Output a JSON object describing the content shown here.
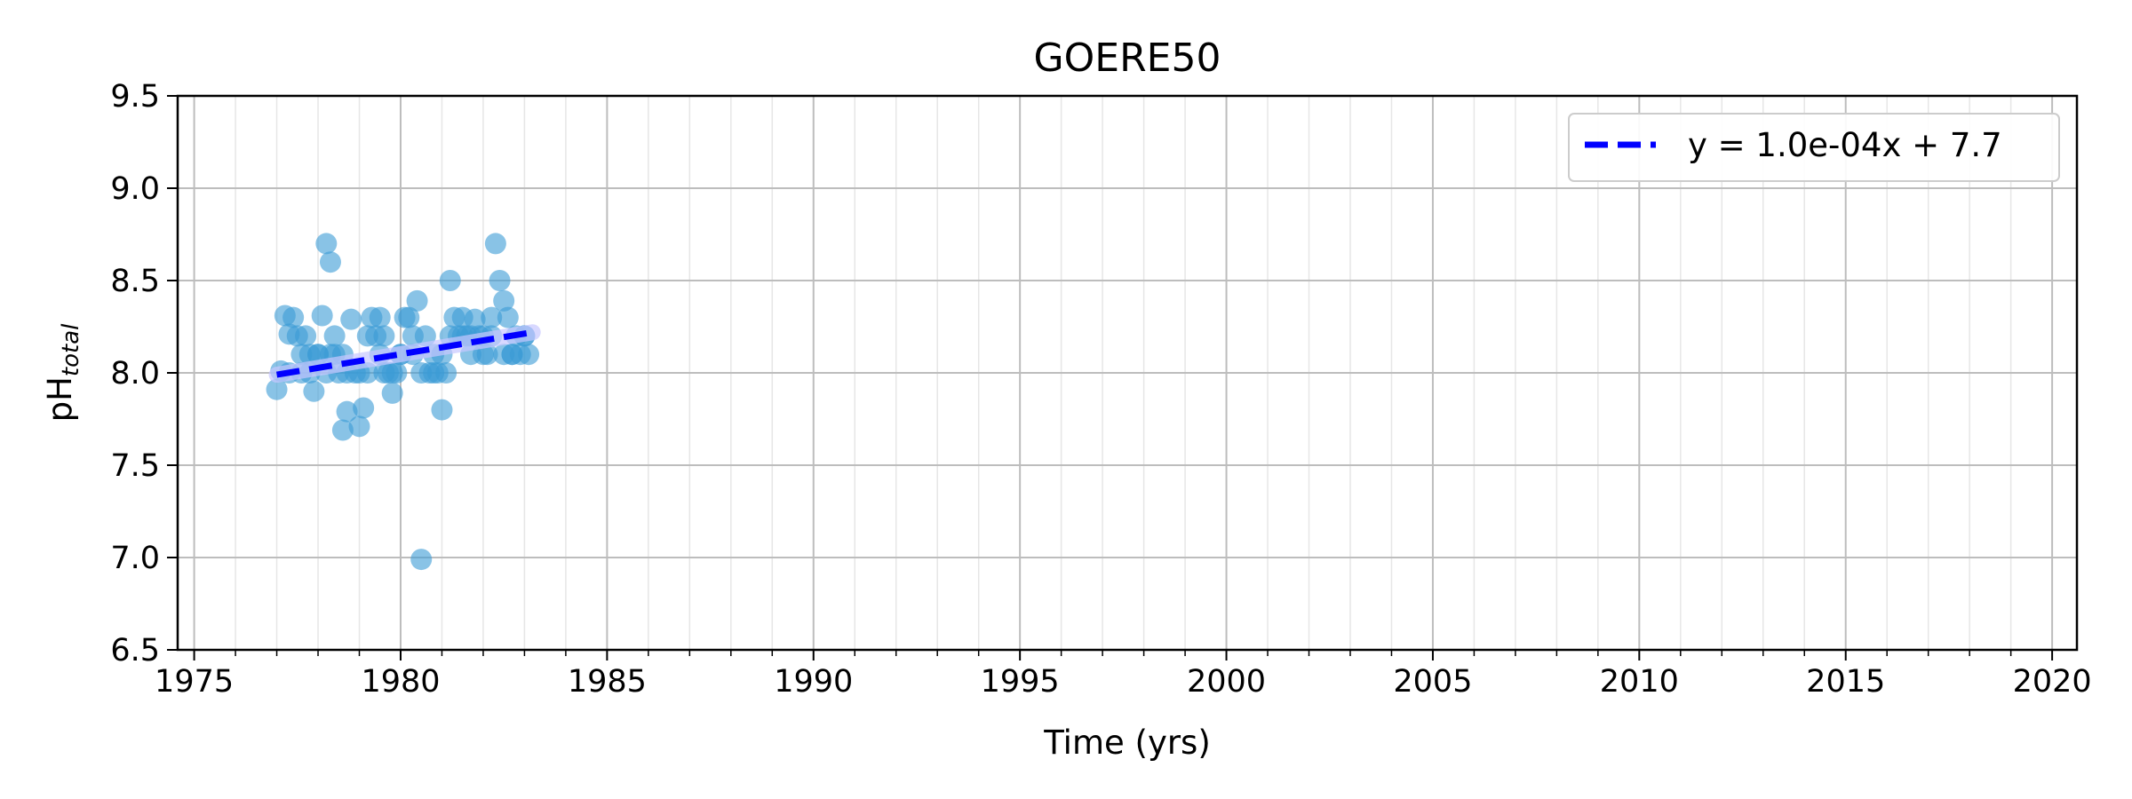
{
  "chart_data": {
    "type": "scatter",
    "title": "GOERE50",
    "xlabel": "Time (yrs)",
    "ylabel": "pH",
    "ylabel_sub": "total",
    "xlim": [
      1974.6,
      2020.6
    ],
    "ylim": [
      6.5,
      9.5
    ],
    "xticks": [
      1975,
      1980,
      1985,
      1990,
      1995,
      2000,
      2005,
      2010,
      2015,
      2020
    ],
    "yticks": [
      6.5,
      7.0,
      7.5,
      8.0,
      8.5,
      9.0,
      9.5
    ],
    "xtick_labels": [
      "1975",
      "1980",
      "1985",
      "1990",
      "1995",
      "2000",
      "2005",
      "2010",
      "2015",
      "2020"
    ],
    "ytick_labels": [
      "6.5",
      "7.0",
      "7.5",
      "8.0",
      "8.5",
      "9.0",
      "9.5"
    ],
    "grid": true,
    "legend_position": "top-right",
    "point_color": "#3a9bd5",
    "trend_color": "#0000ff",
    "series": [
      {
        "kind": "scatter",
        "x": [
          1977.0,
          1977.1,
          1977.2,
          1977.3,
          1977.4,
          1977.5,
          1977.6,
          1977.7,
          1977.8,
          1977.9,
          1978.0,
          1978.1,
          1978.2,
          1978.3,
          1978.3,
          1978.4,
          1978.5,
          1978.6,
          1978.7,
          1978.8,
          1978.9,
          1979.0,
          1979.1,
          1979.2,
          1979.3,
          1979.4,
          1979.5,
          1979.6,
          1979.7,
          1979.8,
          1979.9,
          1980.0,
          1980.1,
          1980.2,
          1980.3,
          1980.4,
          1980.5,
          1980.6,
          1980.7,
          1980.8,
          1980.9,
          1981.0,
          1981.1,
          1981.2,
          1981.3,
          1981.4,
          1981.5,
          1981.6,
          1981.7,
          1981.8,
          1981.9,
          1982.0,
          1982.1,
          1982.2,
          1982.3,
          1982.4,
          1982.5,
          1982.6,
          1982.7,
          1982.8,
          1982.9,
          1983.0,
          1983.1,
          1977.3,
          1977.6,
          1978.0,
          1978.4,
          1978.7,
          1979.0,
          1979.5,
          1979.8,
          1980.3,
          1980.8,
          1981.2,
          1981.7,
          1982.2,
          1982.7,
          1977.8,
          1978.2,
          1978.6,
          1979.2,
          1979.6,
          1980.0,
          1980.5,
          1981.0,
          1981.5,
          1982.0,
          1982.5,
          1983.0
        ],
        "y": [
          7.91,
          8.01,
          8.31,
          8.21,
          8.3,
          8.2,
          8.0,
          8.2,
          8.1,
          7.9,
          8.1,
          8.31,
          8.7,
          8.6,
          8.1,
          8.2,
          8.0,
          7.69,
          7.79,
          8.29,
          8.0,
          7.71,
          7.81,
          8.0,
          8.3,
          8.2,
          8.3,
          8.2,
          8.0,
          7.89,
          8.0,
          8.1,
          8.3,
          8.3,
          8.2,
          8.39,
          6.99,
          8.2,
          8.0,
          8.0,
          8.0,
          7.8,
          8.0,
          8.5,
          8.3,
          8.2,
          8.3,
          8.2,
          8.1,
          8.29,
          8.2,
          8.2,
          8.1,
          8.3,
          8.7,
          8.5,
          8.39,
          8.3,
          8.1,
          8.2,
          8.1,
          8.2,
          8.1,
          8.0,
          8.1,
          8.1,
          8.1,
          8.0,
          8.0,
          8.1,
          8.0,
          8.1,
          8.1,
          8.2,
          8.2,
          8.2,
          8.1,
          8.0,
          8.0,
          8.1,
          8.2,
          8.0,
          8.1,
          8.0,
          8.1,
          8.2,
          8.1,
          8.1,
          8.2
        ]
      },
      {
        "kind": "trendline",
        "name": "y = 1.0e-04x + 7.7",
        "x": [
          1977.0,
          1983.2
        ],
        "y": [
          7.99,
          8.22
        ]
      }
    ]
  }
}
